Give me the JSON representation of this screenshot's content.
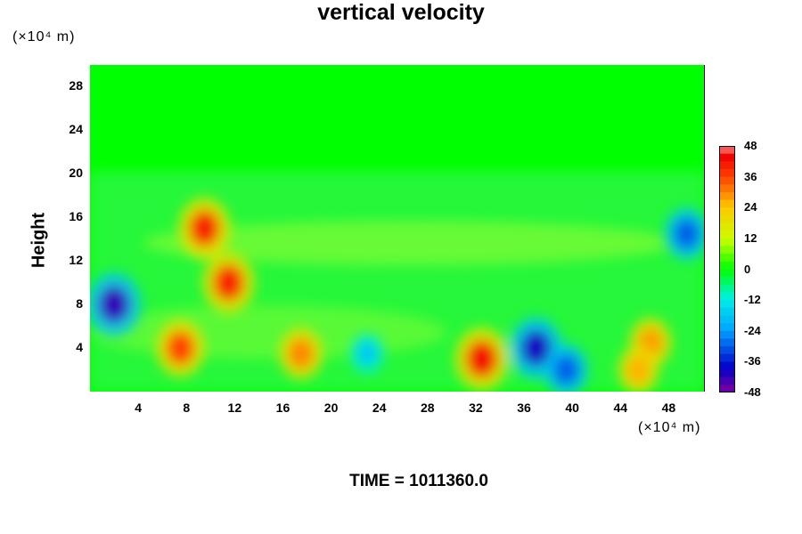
{
  "chart_data": {
    "type": "heatmap",
    "title": "vertical velocity",
    "ylabel": "Height",
    "xlabel": "",
    "y_unit": "(×10⁴ m)",
    "x_unit": "(×10⁴ m)",
    "xlim": [
      0,
      51
    ],
    "ylim": [
      0,
      30
    ],
    "x_ticks": [
      "4",
      "8",
      "12",
      "16",
      "20",
      "24",
      "28",
      "32",
      "36",
      "40",
      "44",
      "48"
    ],
    "y_ticks": [
      "4",
      "8",
      "12",
      "16",
      "20",
      "24",
      "28"
    ],
    "colorbar": {
      "min": -48,
      "max": 48,
      "tick_labels": [
        "48",
        "36",
        "24",
        "12",
        "0",
        "-12",
        "-24",
        "-36",
        "-48"
      ],
      "levels": 32
    },
    "features": [
      {
        "x": 7.5,
        "y": 4.0,
        "value": 36
      },
      {
        "x": 17.5,
        "y": 3.5,
        "value": 30
      },
      {
        "x": 32.5,
        "y": 3.0,
        "value": 42
      },
      {
        "x": 37.0,
        "y": 4.0,
        "value": -40
      },
      {
        "x": 2.0,
        "y": 8.0,
        "value": -42
      },
      {
        "x": 9.5,
        "y": 15.0,
        "value": 40
      },
      {
        "x": 11.5,
        "y": 10.0,
        "value": 40
      },
      {
        "x": 46.5,
        "y": 4.5,
        "value": 28
      },
      {
        "x": 45.5,
        "y": 2.0,
        "value": 26
      },
      {
        "x": 49.5,
        "y": 14.5,
        "value": -30
      },
      {
        "x": 39.5,
        "y": 2.0,
        "value": -30
      },
      {
        "x": 23.0,
        "y": 3.5,
        "value": -18
      }
    ]
  },
  "footer": {
    "time_label": "TIME = 1011360.0"
  }
}
